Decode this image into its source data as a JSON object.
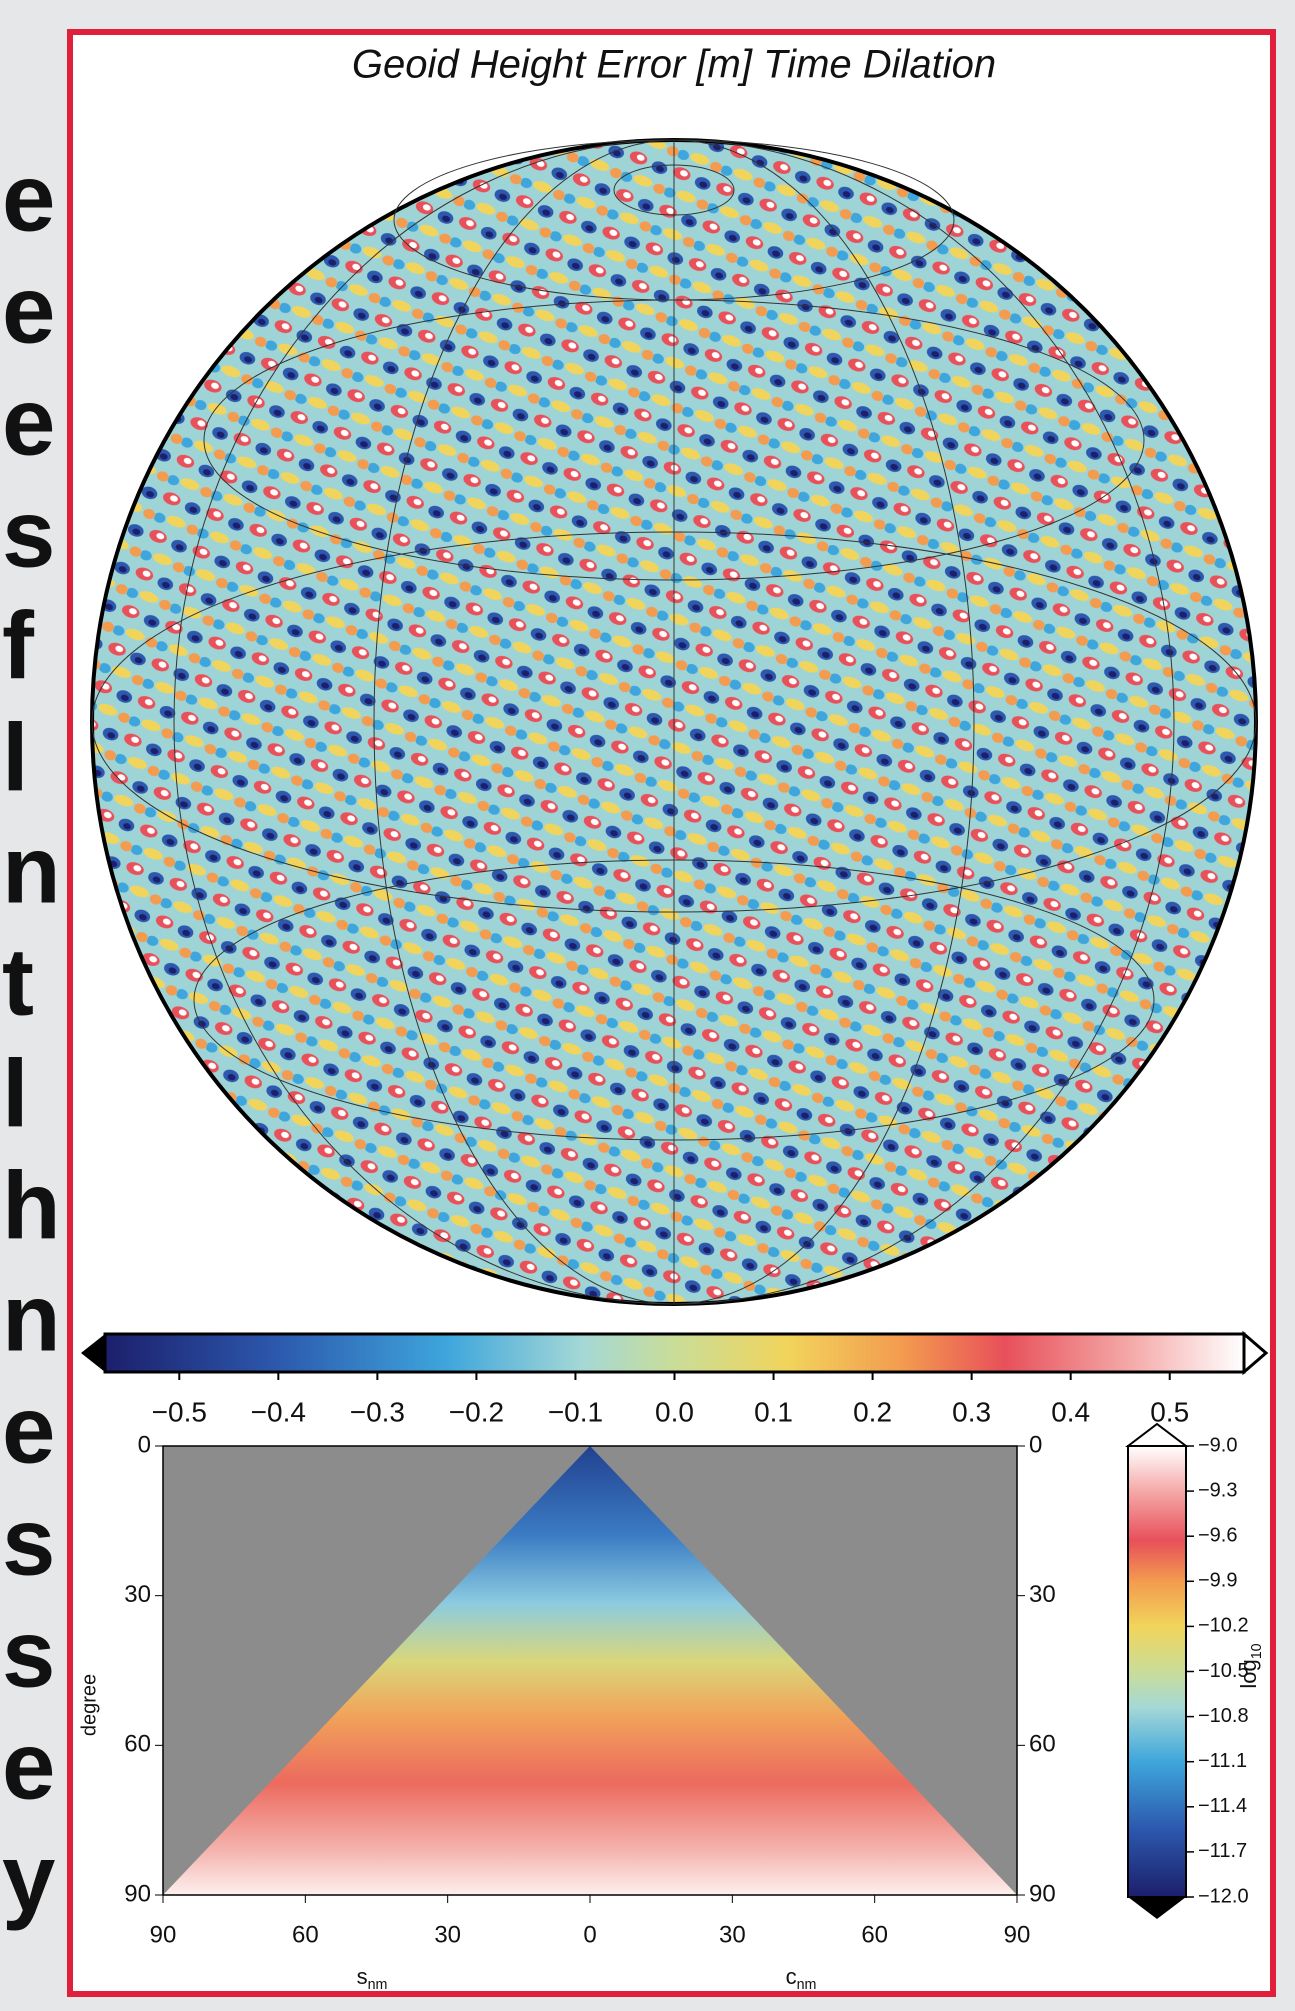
{
  "side_text": [
    "e",
    "e",
    "e",
    "s",
    "f",
    "l",
    "n",
    "t",
    "l",
    "h",
    "n",
    "e",
    "s",
    "s",
    "e",
    "y"
  ],
  "chart_data": [
    {
      "type": "map",
      "title": "Geoid Height Error [m] Time Dilation"
    },
    {
      "type": "colorbar",
      "orientation": "horizontal",
      "xlim": [
        -0.575,
        0.575
      ],
      "xticks": [
        {
          "value": -0.5,
          "label": "−0.5"
        },
        {
          "value": -0.4,
          "label": "−0.4"
        },
        {
          "value": -0.3,
          "label": "−0.3"
        },
        {
          "value": -0.2,
          "label": "−0.2"
        },
        {
          "value": -0.1,
          "label": "−0.1"
        },
        {
          "value": 0,
          "label": "0.0"
        },
        0.1,
        0.2,
        0.3,
        0.4,
        0.5
      ]
    },
    {
      "type": "heatmap",
      "ylabel": "degree",
      "ylim": [
        0,
        90
      ],
      "yticks": [
        0,
        30,
        60,
        90
      ],
      "xlim": [
        -90,
        90
      ],
      "xticks": [
        {
          "value": -90,
          "label": "90"
        },
        {
          "value": -60,
          "label": "60"
        },
        {
          "value": -30,
          "label": "30"
        },
        0,
        30,
        60,
        90
      ],
      "xlabels": [
        {
          "text": "s",
          "sub": "nm"
        },
        {
          "text": "c",
          "sub": "nm"
        }
      ]
    },
    {
      "type": "colorbar",
      "orientation": "vertical",
      "label": {
        "text": "log",
        "sub": "10"
      },
      "ylim": [
        -12,
        -9
      ],
      "yticks": [
        {
          "value": -9,
          "label": "−9.0"
        },
        {
          "value": -9.3,
          "label": "−9.3"
        },
        {
          "value": -9.6,
          "label": "−9.6"
        },
        {
          "value": -9.9,
          "label": "−9.9"
        },
        {
          "value": -10.2,
          "label": "−10.2"
        },
        {
          "value": -10.5,
          "label": "−10.5"
        },
        {
          "value": -10.8,
          "label": "−10.8"
        },
        {
          "value": -11.1,
          "label": "−11.1"
        },
        {
          "value": -11.4,
          "label": "−11.4"
        },
        {
          "value": -11.7,
          "label": "−11.7"
        },
        {
          "value": -12,
          "label": "−12.0"
        }
      ]
    }
  ]
}
